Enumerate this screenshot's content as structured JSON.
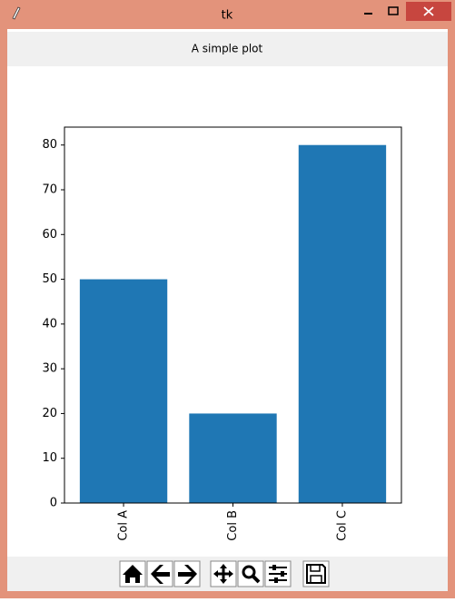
{
  "window": {
    "title": "tk"
  },
  "label": "A simple plot",
  "chart_data": {
    "type": "bar",
    "categories": [
      "Col A",
      "Col B",
      "Col C"
    ],
    "values": [
      50,
      20,
      80
    ],
    "color": "#1f77b4",
    "ylim": [
      0,
      84
    ],
    "yticks": [
      0,
      10,
      20,
      30,
      40,
      50,
      60,
      70,
      80
    ]
  }
}
